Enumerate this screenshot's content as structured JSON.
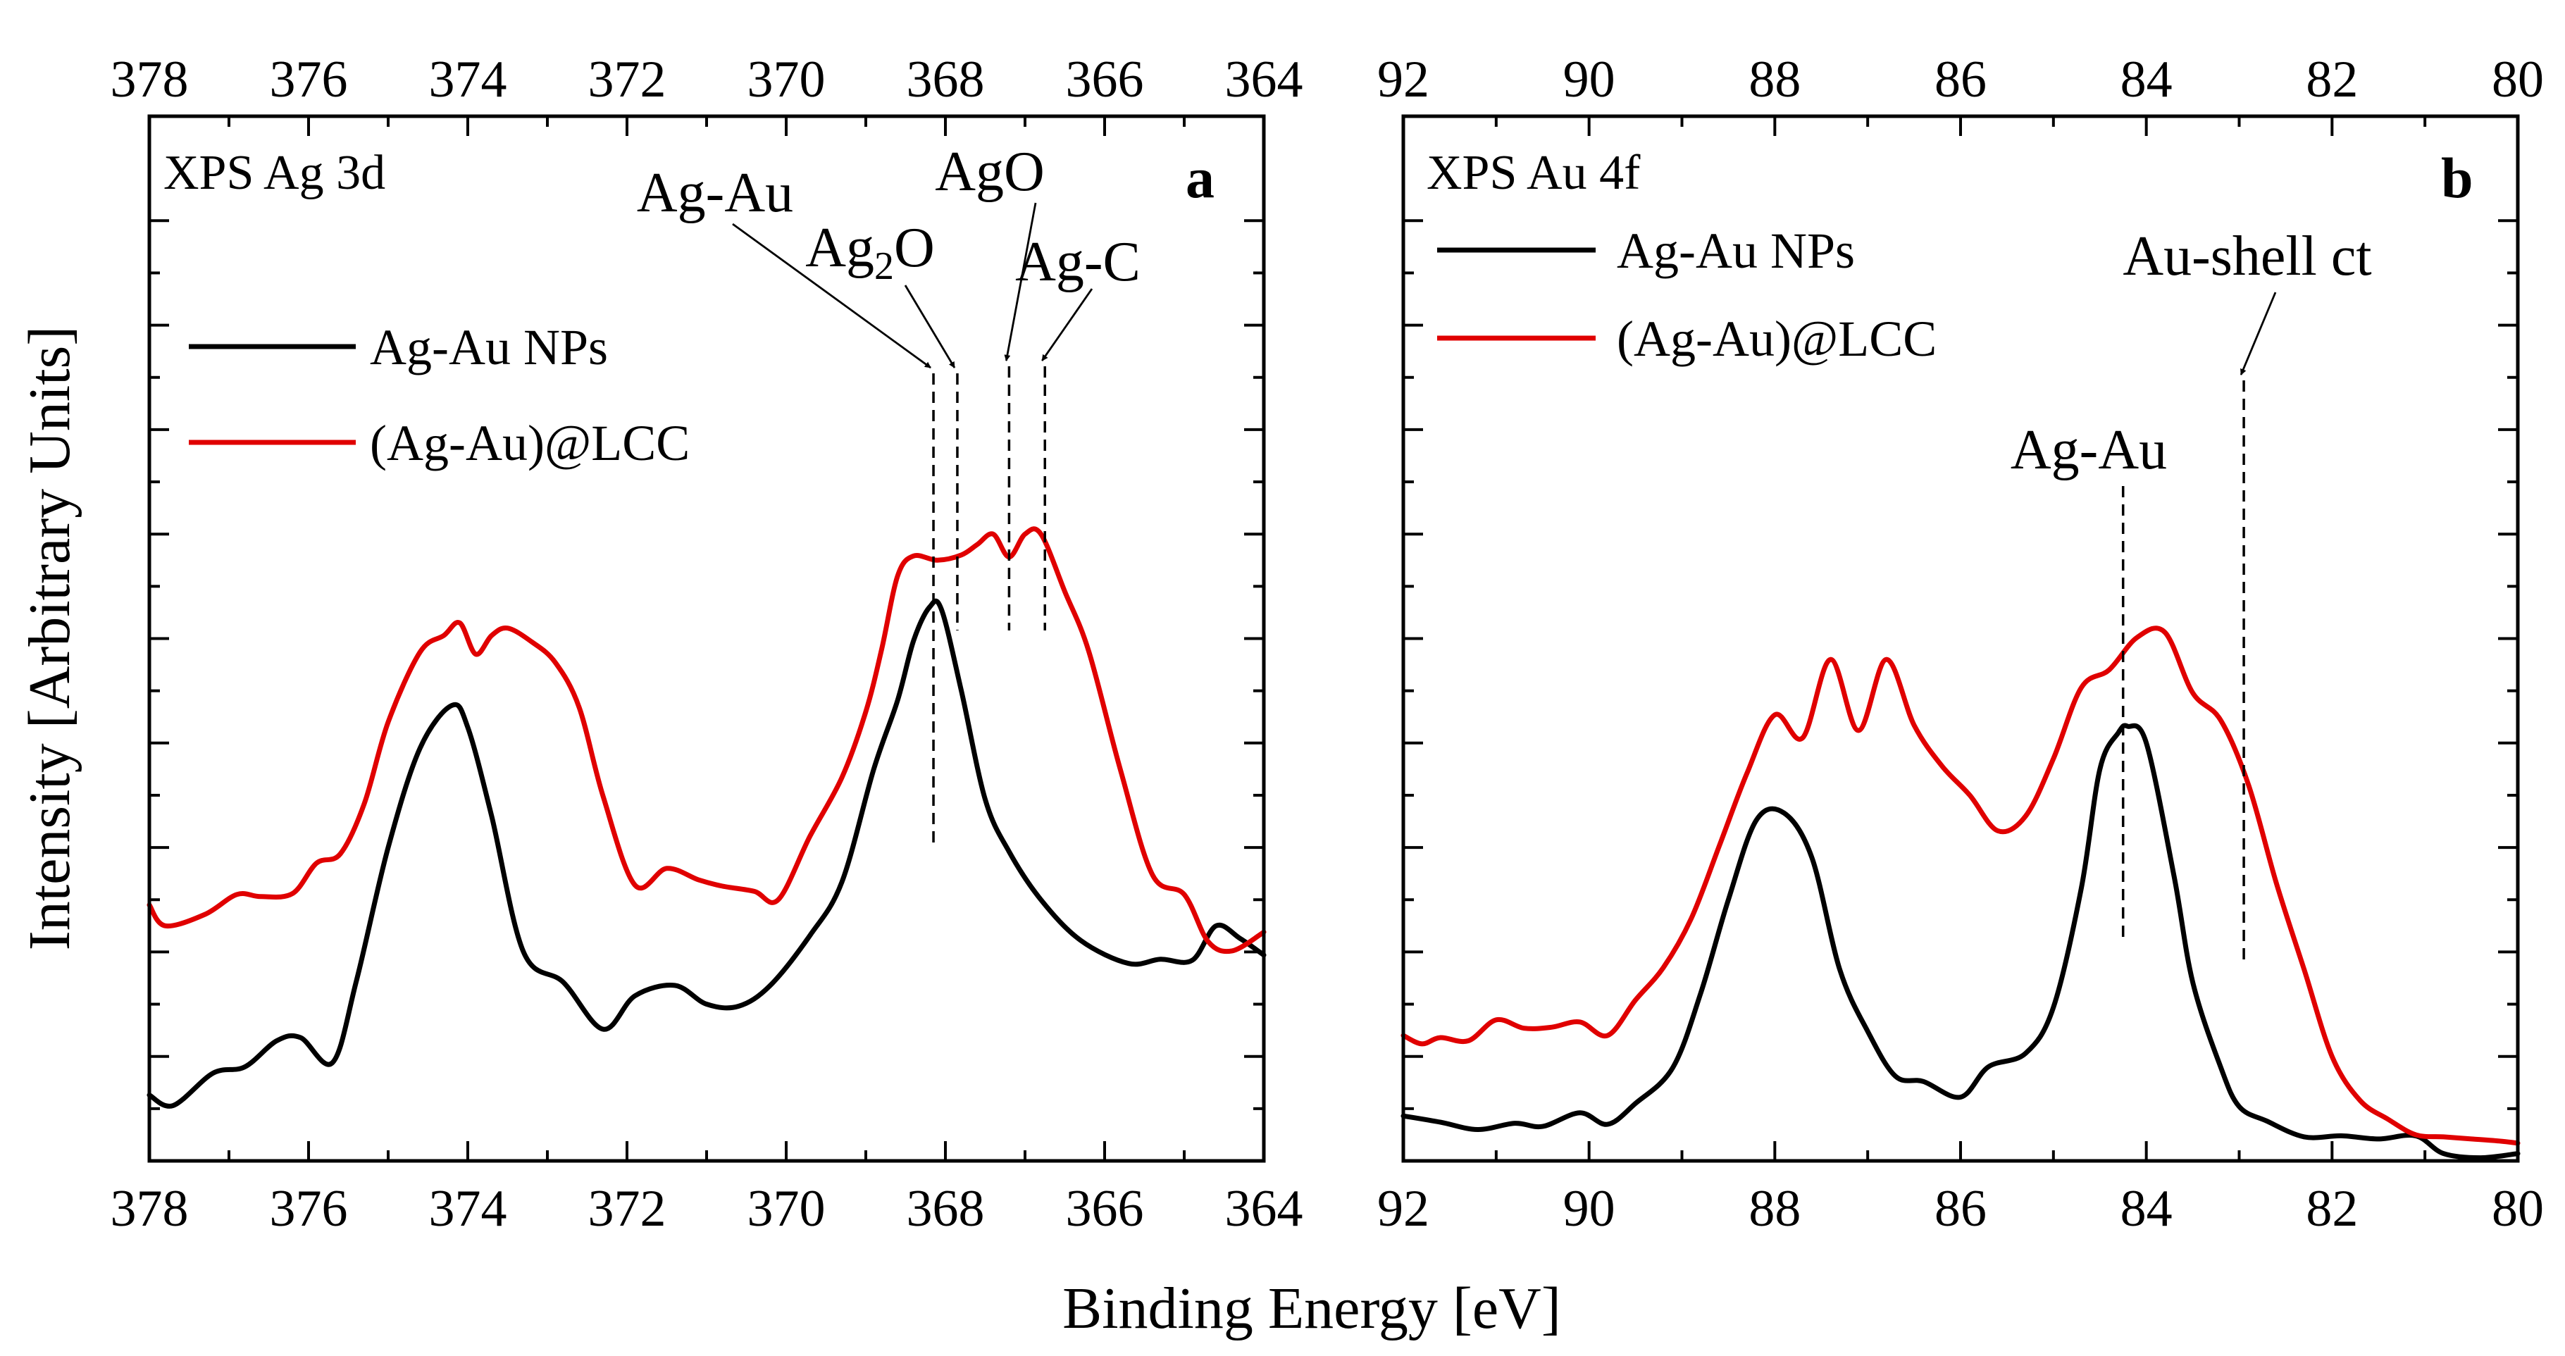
{
  "figure": {
    "ylabel": "Intensity [Arbitrary Units]",
    "xlabel": "Binding Energy [eV]"
  },
  "chart_data": [
    {
      "type": "line",
      "letter": "a",
      "title": "XPS Ag 3d",
      "xlabel": "Binding Energy [eV]",
      "ylabel": "Intensity [Arbitrary Units]",
      "xlim": [
        378,
        364
      ],
      "x_reversed": true,
      "ylim": [
        0,
        100
      ],
      "x_ticks": [
        378,
        376,
        374,
        372,
        370,
        368,
        366,
        364
      ],
      "grid": false,
      "legend_position": "upper-left",
      "colors": {
        "Ag-Au NPs": "#000000",
        "(Ag-Au)@LCC": "#e00000"
      },
      "series": [
        {
          "name": "Ag-Au NPs",
          "color": "#000000",
          "x": [
            378,
            377.7,
            377.2,
            376.8,
            376.4,
            376.1,
            375.7,
            375.4,
            375.0,
            374.6,
            374.2,
            374.0,
            373.7,
            373.3,
            372.8,
            372.3,
            371.9,
            371.4,
            371.0,
            370.6,
            370.2,
            369.7,
            369.3,
            368.9,
            368.6,
            368.4,
            368.2,
            368.05,
            367.8,
            367.5,
            367.2,
            366.8,
            366.3,
            365.7,
            365.3,
            364.9,
            364.6,
            364.3,
            364.0
          ],
          "y": [
            6.3,
            5.3,
            8.4,
            9.0,
            11.5,
            11.8,
            9.4,
            17.2,
            30.0,
            39.5,
            43.6,
            41.5,
            33.0,
            20.0,
            17.1,
            12.6,
            15.8,
            16.8,
            15.0,
            14.8,
            16.8,
            21.6,
            26.7,
            37.5,
            44.1,
            49.8,
            53.0,
            52.8,
            45.0,
            34.6,
            29.6,
            25.0,
            21.1,
            18.9,
            19.3,
            19.2,
            22.5,
            21.3,
            19.7
          ]
        },
        {
          "name": "(Ag-Au)@LCC",
          "color": "#e00000",
          "x": [
            378,
            377.8,
            377.3,
            376.9,
            376.6,
            376.2,
            375.9,
            375.6,
            375.3,
            375.0,
            374.6,
            374.3,
            374.1,
            373.9,
            373.7,
            373.5,
            373.2,
            372.9,
            372.6,
            372.3,
            371.9,
            371.5,
            371.1,
            370.8,
            370.4,
            370.1,
            369.7,
            369.3,
            369.0,
            368.8,
            368.6,
            368.4,
            368.1,
            367.8,
            367.6,
            367.4,
            367.2,
            367.0,
            366.8,
            366.5,
            366.2,
            365.8,
            365.4,
            365.0,
            364.7,
            364.4,
            364.0
          ],
          "y": [
            24.5,
            22.5,
            23.6,
            25.5,
            25.3,
            25.6,
            28.5,
            29.4,
            34.2,
            42.0,
            48.7,
            50.3,
            51.5,
            48.5,
            50.3,
            51.0,
            49.7,
            47.7,
            43.4,
            34.9,
            26.4,
            28.0,
            26.9,
            26.3,
            25.8,
            25.0,
            31.1,
            36.7,
            43.0,
            49.0,
            56.0,
            57.9,
            57.5,
            58.0,
            59.0,
            60.0,
            57.8,
            60.0,
            60.0,
            54.5,
            48.8,
            37.4,
            27.4,
            25.5,
            21.0,
            20.1,
            21.9
          ]
        }
      ],
      "annotations": [
        {
          "text": "Ag-Au",
          "x": 368.15,
          "dashed_line": true,
          "arrow": true
        },
        {
          "text": "Ag2O",
          "display_main": "Ag",
          "display_sub": "2",
          "display_tail": "O",
          "x": 367.85,
          "dashed_line": true,
          "arrow": true
        },
        {
          "text": "AgO",
          "x": 367.2,
          "dashed_line": true,
          "arrow": true
        },
        {
          "text": "Ag-C",
          "x": 366.75,
          "dashed_line": true,
          "arrow": true
        }
      ]
    },
    {
      "type": "line",
      "letter": "b",
      "title": "XPS Au 4f",
      "xlabel": "Binding Energy [eV]",
      "ylabel": "Intensity [Arbitrary Units]",
      "xlim": [
        92,
        80
      ],
      "x_reversed": true,
      "ylim": [
        0,
        100
      ],
      "x_ticks": [
        92,
        90,
        88,
        86,
        84,
        82,
        80
      ],
      "grid": false,
      "legend_position": "upper-left",
      "colors": {
        "Ag-Au NPs": "#000000",
        "(Ag-Au)@LCC": "#e00000"
      },
      "series": [
        {
          "name": "Ag-Au NPs",
          "color": "#000000",
          "x": [
            92,
            91.6,
            91.2,
            90.8,
            90.5,
            90.1,
            89.8,
            89.5,
            89.1,
            88.8,
            88.5,
            88.2,
            87.9,
            87.6,
            87.3,
            87.0,
            86.7,
            86.4,
            86.0,
            85.7,
            85.3,
            85.0,
            84.7,
            84.5,
            84.3,
            84.2,
            84.0,
            83.7,
            83.5,
            83.2,
            83.0,
            82.7,
            82.3,
            81.9,
            81.5,
            81.1,
            80.8,
            80.4,
            80.0
          ],
          "y": [
            4.3,
            3.7,
            3.0,
            3.6,
            3.3,
            4.6,
            3.5,
            5.5,
            8.9,
            16.0,
            25.0,
            32.6,
            33.3,
            29.0,
            18.3,
            12.4,
            8.1,
            7.6,
            6.1,
            9.0,
            10.3,
            14.7,
            26.1,
            37.5,
            41.0,
            41.6,
            40.0,
            27.2,
            17.1,
            9.0,
            5.2,
            3.8,
            2.3,
            2.4,
            2.1,
            2.4,
            0.7,
            0.3,
            0.7
          ]
        },
        {
          "name": "(Ag-Au)@LCC",
          "color": "#e00000",
          "x": [
            92,
            91.8,
            91.6,
            91.3,
            91.0,
            90.7,
            90.4,
            90.1,
            89.8,
            89.5,
            89.2,
            88.9,
            88.6,
            88.3,
            88.0,
            87.7,
            87.4,
            87.1,
            86.8,
            86.5,
            86.2,
            85.9,
            85.6,
            85.3,
            85.0,
            84.7,
            84.4,
            84.1,
            83.8,
            83.5,
            83.2,
            82.9,
            82.6,
            82.3,
            82.0,
            81.7,
            81.4,
            81.1,
            80.8,
            80.5,
            80.2,
            80.0
          ],
          "y": [
            12.0,
            11.2,
            11.8,
            11.5,
            13.5,
            12.7,
            12.8,
            13.3,
            12.0,
            15.4,
            18.5,
            23.2,
            30.1,
            37.1,
            42.7,
            40.5,
            48.0,
            41.2,
            48.0,
            41.7,
            37.8,
            35.0,
            31.6,
            33.0,
            38.5,
            45.3,
            47.0,
            50.1,
            50.6,
            44.8,
            42.2,
            36.0,
            26.6,
            18.3,
            10.0,
            5.8,
            4.0,
            2.5,
            2.3,
            2.1,
            1.9,
            1.7
          ]
        }
      ],
      "annotations": [
        {
          "text": "Ag-Au",
          "x": 84.25,
          "dashed_line": true,
          "arrow": false
        },
        {
          "text": "Au-shell ct",
          "x": 82.95,
          "dashed_line": true,
          "arrow": true
        }
      ]
    }
  ]
}
